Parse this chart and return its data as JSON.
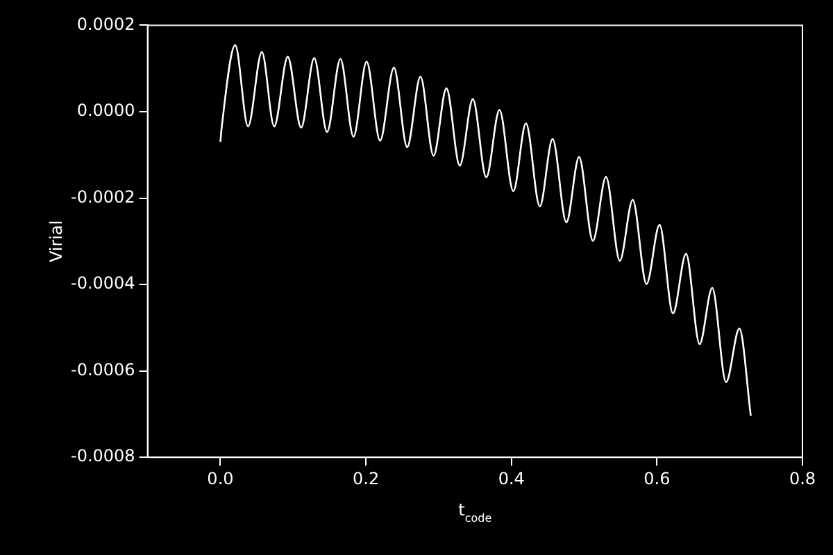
{
  "chart_data": {
    "type": "line",
    "xlabel": "t$_{code}$",
    "ylabel": "Virial",
    "x": [
      0,
      0.002,
      0.0204,
      0.038,
      0.057,
      0.074,
      0.0926,
      0.111,
      0.129,
      0.1466,
      0.165,
      0.183,
      0.201,
      0.2195,
      0.2385,
      0.2567,
      0.275,
      0.293,
      0.3107,
      0.329,
      0.347,
      0.3654,
      0.3836,
      0.4026,
      0.42,
      0.439,
      0.4566,
      0.4755,
      0.493,
      0.512,
      0.53,
      0.549,
      0.5667,
      0.5857,
      0.6036,
      0.622,
      0.64,
      0.6586,
      0.676,
      0.695,
      0.7133,
      0.729
    ],
    "series": [
      {
        "color": "#ffffff",
        "values": [
          -7e-05,
          -3.4e-05,
          0.000154,
          -3.4e-05,
          0.000138,
          -3.4e-05,
          0.000127,
          -3.7e-05,
          0.000124,
          -4.7e-05,
          0.000122,
          -5.8e-05,
          0.000116,
          -6.7e-05,
          0.000102,
          -8.2e-05,
          8.1e-05,
          -0.000102,
          5.4e-05,
          -0.000125,
          2.9e-05,
          -0.000152,
          4e-06,
          -0.000184,
          -2.7e-05,
          -0.000219,
          -6.3e-05,
          -0.000256,
          -0.000105,
          -0.000299,
          -0.000151,
          -0.000345,
          -0.000204,
          -0.000399,
          -0.000262,
          -0.000467,
          -0.000329,
          -0.000538,
          -0.000408,
          -0.000626,
          -0.000502,
          -0.000704
        ]
      }
    ],
    "xlim": [
      -0.1,
      0.8
    ],
    "xticks": [
      {
        "value": 0,
        "label": "0.0"
      },
      0.2,
      0.4,
      0.6,
      0.8
    ],
    "ylim": [
      -0.0008,
      0.0002
    ],
    "yticks": [
      -0.0008,
      -0.0006,
      -0.0004,
      -0.0002,
      {
        "value": 0,
        "label": "0.0000"
      },
      0.0002
    ],
    "grid": false,
    "legend": false,
    "marker": "none",
    "line_style": "solid"
  }
}
